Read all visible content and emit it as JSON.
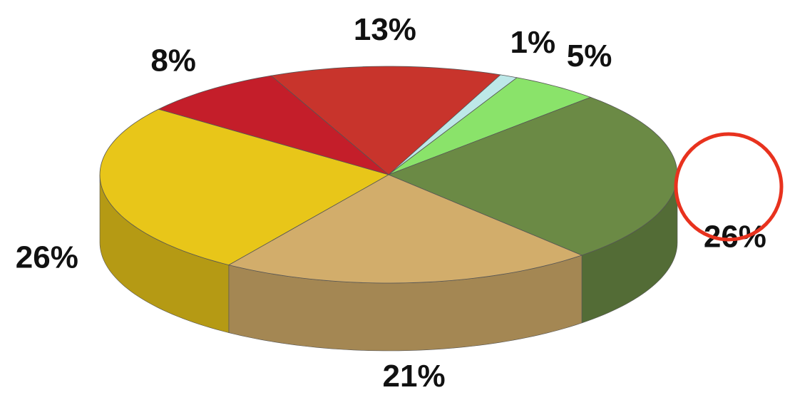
{
  "chart_data": {
    "type": "pie",
    "values": [
      13,
      1,
      5,
      26,
      21,
      26,
      8
    ],
    "value_labels": [
      "13%",
      "1%",
      "5%",
      "26%",
      "21%",
      "26%",
      "8%"
    ],
    "colors": [
      "#c8342c",
      "#bde8e8",
      "#8ae36a",
      "#6b8a45",
      "#d2ad6b",
      "#e8c619",
      "#c41e2a"
    ]
  }
}
